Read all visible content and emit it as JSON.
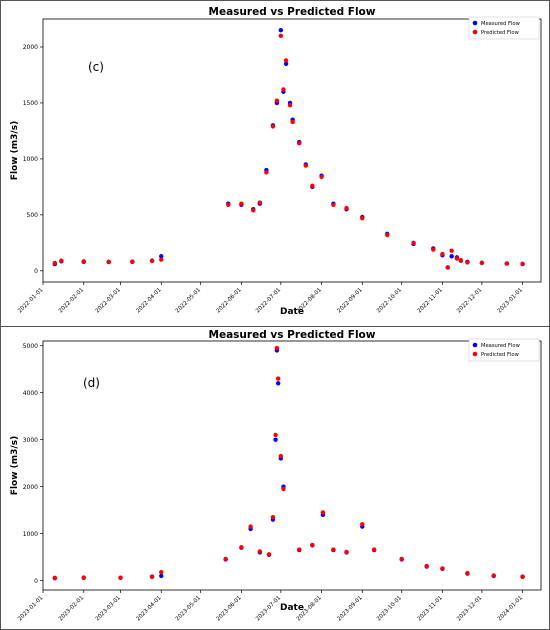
{
  "figure": {
    "panels": [
      {
        "label": "(c)"
      },
      {
        "label": "(d)"
      }
    ]
  },
  "chart_data": [
    {
      "type": "scatter",
      "title": "Measured vs Predicted Flow",
      "xlabel": "Date",
      "ylabel": "Flow (m3/s)",
      "panel_label": "(c)",
      "x_range": [
        "2022-01-01",
        "2023-01-15"
      ],
      "ylim": [
        -100,
        2250
      ],
      "yticks": [
        0,
        500,
        1000,
        1500,
        2000
      ],
      "xticks": [
        "2022-01-01",
        "2022-02-01",
        "2022-03-01",
        "2022-04-01",
        "2022-05-01",
        "2022-06-01",
        "2022-07-01",
        "2022-08-01",
        "2022-09-01",
        "2022-10-01",
        "2022-11-01",
        "2022-12-01",
        "2023-01-01"
      ],
      "legend_position": "top-right",
      "series": [
        {
          "name": "Measured Flow",
          "color": "#0000ff",
          "x": [
            "2022-01-10",
            "2022-01-15",
            "2022-02-01",
            "2022-02-20",
            "2022-03-10",
            "2022-03-25",
            "2022-04-01",
            "2022-05-22",
            "2022-06-01",
            "2022-06-10",
            "2022-06-15",
            "2022-06-20",
            "2022-06-25",
            "2022-06-28",
            "2022-07-01",
            "2022-07-03",
            "2022-07-05",
            "2022-07-08",
            "2022-07-10",
            "2022-07-15",
            "2022-07-20",
            "2022-07-25",
            "2022-08-01",
            "2022-08-10",
            "2022-08-20",
            "2022-09-01",
            "2022-09-20",
            "2022-10-10",
            "2022-10-25",
            "2022-11-01",
            "2022-11-05",
            "2022-11-08",
            "2022-11-12",
            "2022-11-15",
            "2022-11-20",
            "2022-12-01",
            "2022-12-20",
            "2023-01-01"
          ],
          "y": [
            60,
            85,
            80,
            78,
            80,
            90,
            130,
            600,
            590,
            550,
            600,
            900,
            1300,
            1500,
            2150,
            1600,
            1850,
            1500,
            1350,
            1150,
            950,
            750,
            850,
            600,
            550,
            480,
            330,
            240,
            200,
            140,
            30,
            130,
            120,
            90,
            80,
            70,
            65,
            60
          ]
        },
        {
          "name": "Predicted Flow",
          "color": "#ff0000",
          "x": [
            "2022-01-10",
            "2022-01-15",
            "2022-02-01",
            "2022-02-20",
            "2022-03-10",
            "2022-03-25",
            "2022-04-01",
            "2022-05-22",
            "2022-06-01",
            "2022-06-10",
            "2022-06-15",
            "2022-06-20",
            "2022-06-25",
            "2022-06-28",
            "2022-07-01",
            "2022-07-03",
            "2022-07-05",
            "2022-07-08",
            "2022-07-10",
            "2022-07-15",
            "2022-07-20",
            "2022-07-25",
            "2022-08-01",
            "2022-08-10",
            "2022-08-20",
            "2022-09-01",
            "2022-09-20",
            "2022-10-10",
            "2022-10-25",
            "2022-11-01",
            "2022-11-05",
            "2022-11-08",
            "2022-11-12",
            "2022-11-15",
            "2022-11-20",
            "2022-12-01",
            "2022-12-20",
            "2023-01-01"
          ],
          "y": [
            70,
            90,
            85,
            80,
            82,
            88,
            100,
            590,
            600,
            540,
            610,
            880,
            1290,
            1520,
            2100,
            1620,
            1880,
            1480,
            1330,
            1140,
            940,
            760,
            840,
            590,
            560,
            470,
            320,
            250,
            190,
            150,
            30,
            180,
            110,
            95,
            75,
            72,
            66,
            62
          ]
        }
      ]
    },
    {
      "type": "scatter",
      "title": "Measured vs Predicted Flow",
      "xlabel": "Date",
      "ylabel": "Flow (m3/s)",
      "panel_label": "(d)",
      "x_range": [
        "2023-01-01",
        "2024-01-15"
      ],
      "ylim": [
        -200,
        5100
      ],
      "yticks": [
        0,
        1000,
        2000,
        3000,
        4000,
        5000
      ],
      "xticks": [
        "2023-01-01",
        "2023-02-01",
        "2023-03-01",
        "2023-04-01",
        "2023-05-01",
        "2023-06-01",
        "2023-07-01",
        "2023-08-01",
        "2023-09-01",
        "2023-10-01",
        "2023-11-01",
        "2023-12-01",
        "2024-01-01"
      ],
      "legend_position": "top-right",
      "series": [
        {
          "name": "Measured Flow",
          "color": "#0000ff",
          "x": [
            "2023-01-10",
            "2023-02-01",
            "2023-03-01",
            "2023-03-25",
            "2023-04-01",
            "2023-05-20",
            "2023-06-01",
            "2023-06-08",
            "2023-06-15",
            "2023-06-22",
            "2023-06-25",
            "2023-06-27",
            "2023-06-28",
            "2023-06-29",
            "2023-07-01",
            "2023-07-03",
            "2023-07-15",
            "2023-07-25",
            "2023-08-02",
            "2023-08-10",
            "2023-08-20",
            "2023-09-01",
            "2023-09-10",
            "2023-10-01",
            "2023-10-20",
            "2023-11-01",
            "2023-11-20",
            "2023-12-10",
            "2024-01-01"
          ],
          "y": [
            50,
            60,
            60,
            80,
            100,
            450,
            700,
            1100,
            600,
            550,
            1300,
            3000,
            4900,
            4200,
            2600,
            2000,
            650,
            750,
            1400,
            650,
            600,
            1150,
            650,
            450,
            300,
            250,
            150,
            100,
            80
          ]
        },
        {
          "name": "Predicted Flow",
          "color": "#ff0000",
          "x": [
            "2023-01-10",
            "2023-02-01",
            "2023-03-01",
            "2023-03-25",
            "2023-04-01",
            "2023-05-20",
            "2023-06-01",
            "2023-06-08",
            "2023-06-15",
            "2023-06-22",
            "2023-06-25",
            "2023-06-27",
            "2023-06-28",
            "2023-06-29",
            "2023-07-01",
            "2023-07-03",
            "2023-07-15",
            "2023-07-25",
            "2023-08-02",
            "2023-08-10",
            "2023-08-20",
            "2023-09-01",
            "2023-09-10",
            "2023-10-01",
            "2023-10-20",
            "2023-11-01",
            "2023-11-20",
            "2023-12-10",
            "2024-01-01"
          ],
          "y": [
            60,
            65,
            62,
            85,
            180,
            460,
            710,
            1150,
            620,
            560,
            1350,
            3100,
            4950,
            4300,
            2650,
            1950,
            660,
            760,
            1450,
            660,
            610,
            1200,
            660,
            460,
            310,
            260,
            160,
            110,
            85
          ]
        }
      ]
    }
  ]
}
